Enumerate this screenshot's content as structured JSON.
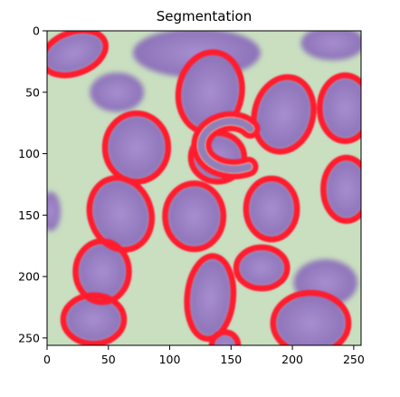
{
  "chart_data": {
    "type": "heatmap",
    "title": "Segmentation",
    "xlabel": "",
    "ylabel": "",
    "xlim": [
      0,
      256
    ],
    "ylim": [
      256,
      0
    ],
    "xticks": [
      0,
      50,
      100,
      150,
      200,
      250
    ],
    "yticks": [
      0,
      50,
      100,
      150,
      200,
      250
    ],
    "grid": false,
    "legend": "none",
    "colors": {
      "background": "#c9dfc0",
      "cell": "#8a6fb5",
      "cell_center": "#a78fd0",
      "outline": "#ff1f2e"
    },
    "cells": [
      {
        "cx": 22,
        "cy": 18,
        "rx": 26,
        "ry": 16,
        "rot": -20,
        "outlined": true
      },
      {
        "cx": 122,
        "cy": 18,
        "rx": 52,
        "ry": 20,
        "rot": 0,
        "outlined": false
      },
      {
        "cx": 233,
        "cy": 10,
        "rx": 26,
        "ry": 14,
        "rot": 0,
        "outlined": false
      },
      {
        "cx": 133,
        "cy": 50,
        "rx": 25,
        "ry": 32,
        "rot": 10,
        "outlined": true
      },
      {
        "cx": 193,
        "cy": 68,
        "rx": 23,
        "ry": 30,
        "rot": 15,
        "outlined": true
      },
      {
        "cx": 243,
        "cy": 63,
        "rx": 20,
        "ry": 26,
        "rot": 0,
        "outlined": true
      },
      {
        "cx": 57,
        "cy": 50,
        "rx": 22,
        "ry": 16,
        "rot": 0,
        "outlined": false
      },
      {
        "cx": 73,
        "cy": 95,
        "rx": 25,
        "ry": 27,
        "rot": 0,
        "outlined": true
      },
      {
        "cx": 139,
        "cy": 103,
        "rx": 21,
        "ry": 19,
        "rot": 0,
        "outlined": true
      },
      {
        "cx": 244,
        "cy": 129,
        "rx": 18,
        "ry": 25,
        "rot": 0,
        "outlined": true
      },
      {
        "cx": 60,
        "cy": 149,
        "rx": 24,
        "ry": 29,
        "rot": -20,
        "outlined": true
      },
      {
        "cx": 120,
        "cy": 151,
        "rx": 23,
        "ry": 26,
        "rot": 0,
        "outlined": true
      },
      {
        "cx": 183,
        "cy": 145,
        "rx": 20,
        "ry": 24,
        "rot": 0,
        "outlined": true
      },
      {
        "cx": 3,
        "cy": 147,
        "rx": 8,
        "ry": 16,
        "rot": 0,
        "outlined": false
      },
      {
        "cx": 45,
        "cy": 196,
        "rx": 21,
        "ry": 24,
        "rot": 0,
        "outlined": true
      },
      {
        "cx": 175,
        "cy": 193,
        "rx": 20,
        "ry": 16,
        "rot": 0,
        "outlined": true
      },
      {
        "cx": 227,
        "cy": 205,
        "rx": 26,
        "ry": 19,
        "rot": 0,
        "outlined": false
      },
      {
        "cx": 133,
        "cy": 217,
        "rx": 18,
        "ry": 33,
        "rot": 5,
        "outlined": true
      },
      {
        "cx": 38,
        "cy": 235,
        "rx": 24,
        "ry": 19,
        "rot": 0,
        "outlined": true
      },
      {
        "cx": 215,
        "cy": 238,
        "rx": 30,
        "ry": 24,
        "rot": 0,
        "outlined": true
      },
      {
        "cx": 145,
        "cy": 256,
        "rx": 10,
        "ry": 10,
        "rot": 0,
        "outlined": true
      }
    ],
    "curls": [
      {
        "cx": 145,
        "cy": 90,
        "outlined": true
      }
    ]
  }
}
